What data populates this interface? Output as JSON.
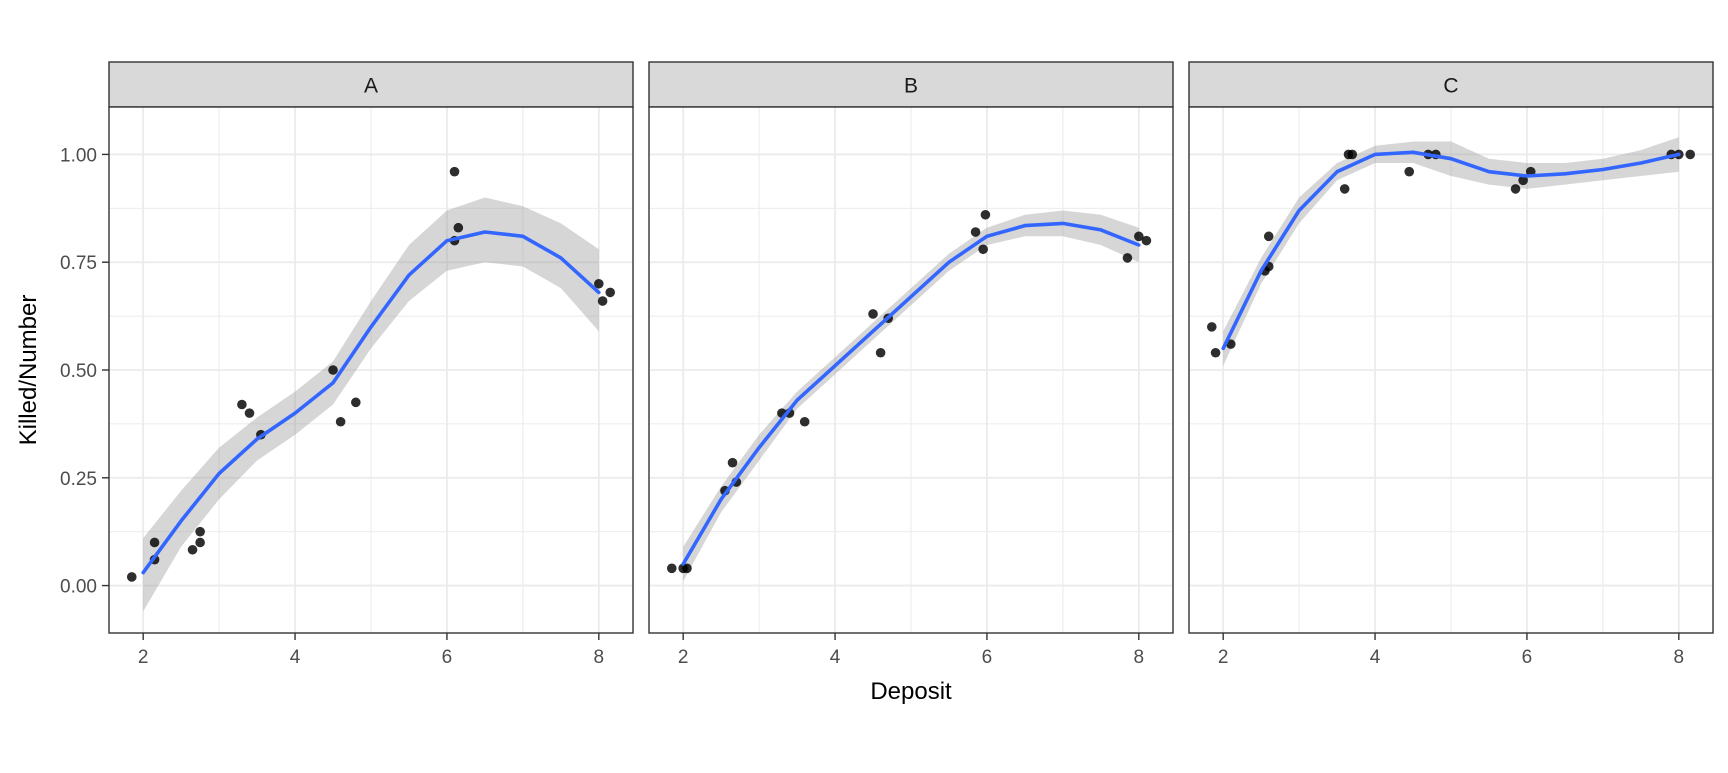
{
  "chart_data": {
    "type": "scatter",
    "xlabel": "Deposit",
    "ylabel": "Killed/Number",
    "xlim": [
      1.55,
      8.45
    ],
    "ylim": [
      -0.11,
      1.11
    ],
    "x_ticks": [
      2,
      4,
      6,
      8
    ],
    "x_tick_labels": [
      "2",
      "4",
      "6",
      "8"
    ],
    "y_ticks": [
      0,
      0.25,
      0.5,
      0.75,
      1
    ],
    "y_tick_labels": [
      "0.00",
      "0.25",
      "0.50",
      "0.75",
      "1.00"
    ],
    "grid": true,
    "smoother": "loess with confidence band",
    "colors": {
      "points": "#000000",
      "smooth_line": "#3366FF",
      "confidence_band": "#999999",
      "strip_background": "#D9D9D9",
      "grid": "#EBEBEB",
      "axis_text": "#4D4D4D"
    },
    "facets": [
      {
        "label": "A",
        "points": [
          [
            1.85,
            0.02
          ],
          [
            2.15,
            0.06
          ],
          [
            2.15,
            0.1
          ],
          [
            2.65,
            0.083
          ],
          [
            2.75,
            0.1
          ],
          [
            2.75,
            0.125
          ],
          [
            3.3,
            0.42
          ],
          [
            3.4,
            0.4
          ],
          [
            3.55,
            0.35
          ],
          [
            4.5,
            0.5
          ],
          [
            4.6,
            0.38
          ],
          [
            4.8,
            0.425
          ],
          [
            6.1,
            0.96
          ],
          [
            6.1,
            0.8
          ],
          [
            6.15,
            0.83
          ],
          [
            8.0,
            0.7
          ],
          [
            8.05,
            0.66
          ],
          [
            8.15,
            0.68
          ]
        ],
        "smooth": [
          [
            2.0,
            0.03
          ],
          [
            2.5,
            0.15
          ],
          [
            3.0,
            0.26
          ],
          [
            3.5,
            0.34
          ],
          [
            4.0,
            0.4
          ],
          [
            4.5,
            0.47
          ],
          [
            5.0,
            0.6
          ],
          [
            5.5,
            0.72
          ],
          [
            6.0,
            0.8
          ],
          [
            6.5,
            0.82
          ],
          [
            7.0,
            0.81
          ],
          [
            7.5,
            0.76
          ],
          [
            8.0,
            0.68
          ]
        ],
        "band_upper": [
          [
            2.0,
            0.11
          ],
          [
            2.5,
            0.22
          ],
          [
            3.0,
            0.32
          ],
          [
            3.5,
            0.39
          ],
          [
            4.0,
            0.45
          ],
          [
            4.5,
            0.52
          ],
          [
            5.0,
            0.66
          ],
          [
            5.5,
            0.79
          ],
          [
            6.0,
            0.87
          ],
          [
            6.5,
            0.9
          ],
          [
            7.0,
            0.88
          ],
          [
            7.5,
            0.84
          ],
          [
            8.0,
            0.78
          ]
        ],
        "band_lower": [
          [
            2.0,
            -0.06
          ],
          [
            2.5,
            0.09
          ],
          [
            3.0,
            0.2
          ],
          [
            3.5,
            0.29
          ],
          [
            4.0,
            0.35
          ],
          [
            4.5,
            0.42
          ],
          [
            5.0,
            0.55
          ],
          [
            5.5,
            0.66
          ],
          [
            6.0,
            0.73
          ],
          [
            6.5,
            0.75
          ],
          [
            7.0,
            0.74
          ],
          [
            7.5,
            0.69
          ],
          [
            8.0,
            0.59
          ]
        ]
      },
      {
        "label": "B",
        "points": [
          [
            1.85,
            0.04
          ],
          [
            2.0,
            0.04
          ],
          [
            2.05,
            0.04
          ],
          [
            2.55,
            0.22
          ],
          [
            2.65,
            0.285
          ],
          [
            2.7,
            0.24
          ],
          [
            3.3,
            0.4
          ],
          [
            3.4,
            0.4
          ],
          [
            3.6,
            0.38
          ],
          [
            4.5,
            0.63
          ],
          [
            4.6,
            0.54
          ],
          [
            4.7,
            0.62
          ],
          [
            5.85,
            0.82
          ],
          [
            5.95,
            0.78
          ],
          [
            5.98,
            0.86
          ],
          [
            7.85,
            0.76
          ],
          [
            8.0,
            0.81
          ],
          [
            8.1,
            0.8
          ]
        ],
        "smooth": [
          [
            2.0,
            0.05
          ],
          [
            2.5,
            0.2
          ],
          [
            3.0,
            0.32
          ],
          [
            3.5,
            0.43
          ],
          [
            4.0,
            0.51
          ],
          [
            4.5,
            0.59
          ],
          [
            5.0,
            0.67
          ],
          [
            5.5,
            0.75
          ],
          [
            6.0,
            0.81
          ],
          [
            6.5,
            0.835
          ],
          [
            7.0,
            0.84
          ],
          [
            7.5,
            0.825
          ],
          [
            8.0,
            0.79
          ]
        ],
        "band_upper": [
          [
            2.0,
            0.09
          ],
          [
            2.5,
            0.23
          ],
          [
            3.0,
            0.35
          ],
          [
            3.5,
            0.45
          ],
          [
            4.0,
            0.53
          ],
          [
            4.5,
            0.61
          ],
          [
            5.0,
            0.69
          ],
          [
            5.5,
            0.77
          ],
          [
            6.0,
            0.83
          ],
          [
            6.5,
            0.86
          ],
          [
            7.0,
            0.87
          ],
          [
            7.5,
            0.86
          ],
          [
            8.0,
            0.83
          ]
        ],
        "band_lower": [
          [
            2.0,
            0.01
          ],
          [
            2.5,
            0.17
          ],
          [
            3.0,
            0.29
          ],
          [
            3.5,
            0.41
          ],
          [
            4.0,
            0.49
          ],
          [
            4.5,
            0.57
          ],
          [
            5.0,
            0.65
          ],
          [
            5.5,
            0.73
          ],
          [
            6.0,
            0.79
          ],
          [
            6.5,
            0.81
          ],
          [
            7.0,
            0.81
          ],
          [
            7.5,
            0.79
          ],
          [
            8.0,
            0.75
          ]
        ]
      },
      {
        "label": "C",
        "points": [
          [
            1.85,
            0.6
          ],
          [
            1.9,
            0.54
          ],
          [
            2.1,
            0.56
          ],
          [
            2.55,
            0.73
          ],
          [
            2.6,
            0.74
          ],
          [
            2.6,
            0.81
          ],
          [
            3.6,
            0.92
          ],
          [
            3.65,
            1.0
          ],
          [
            3.7,
            1.0
          ],
          [
            4.45,
            0.96
          ],
          [
            4.7,
            1.0
          ],
          [
            4.8,
            1.0
          ],
          [
            5.85,
            0.92
          ],
          [
            5.95,
            0.94
          ],
          [
            6.05,
            0.96
          ],
          [
            7.9,
            1.0
          ],
          [
            8.0,
            1.0
          ],
          [
            8.15,
            1.0
          ]
        ],
        "smooth": [
          [
            2.0,
            0.55
          ],
          [
            2.5,
            0.73
          ],
          [
            3.0,
            0.87
          ],
          [
            3.5,
            0.96
          ],
          [
            4.0,
            1.0
          ],
          [
            4.5,
            1.005
          ],
          [
            5.0,
            0.99
          ],
          [
            5.5,
            0.96
          ],
          [
            6.0,
            0.95
          ],
          [
            6.5,
            0.955
          ],
          [
            7.0,
            0.965
          ],
          [
            7.5,
            0.98
          ],
          [
            8.0,
            1.0
          ]
        ],
        "band_upper": [
          [
            2.0,
            0.59
          ],
          [
            2.5,
            0.76
          ],
          [
            3.0,
            0.9
          ],
          [
            3.5,
            0.98
          ],
          [
            4.0,
            1.02
          ],
          [
            4.5,
            1.03
          ],
          [
            5.0,
            1.03
          ],
          [
            5.5,
            0.99
          ],
          [
            6.0,
            0.98
          ],
          [
            6.5,
            0.98
          ],
          [
            7.0,
            0.99
          ],
          [
            7.5,
            1.01
          ],
          [
            8.0,
            1.04
          ]
        ],
        "band_lower": [
          [
            2.0,
            0.51
          ],
          [
            2.5,
            0.7
          ],
          [
            3.0,
            0.84
          ],
          [
            3.5,
            0.94
          ],
          [
            4.0,
            0.98
          ],
          [
            4.5,
            0.98
          ],
          [
            5.0,
            0.95
          ],
          [
            5.5,
            0.93
          ],
          [
            6.0,
            0.92
          ],
          [
            6.5,
            0.93
          ],
          [
            7.0,
            0.94
          ],
          [
            7.5,
            0.95
          ],
          [
            8.0,
            0.96
          ]
        ]
      }
    ]
  }
}
